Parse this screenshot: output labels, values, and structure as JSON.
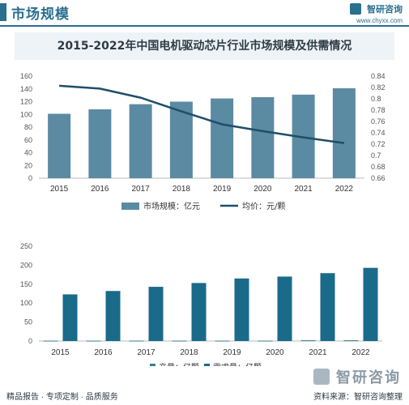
{
  "header": {
    "title": "市场规模",
    "brand_name": "智研咨询",
    "brand_url": "www.chyxx.com"
  },
  "colors": {
    "accent": "#2a6f8e",
    "bar_light": "#5b8aa3",
    "line": "#1f4e6b",
    "bar_dark": "#1a6a8a",
    "bar_tiny": "#3b7d95"
  },
  "chart_data": [
    {
      "type": "bar",
      "title": "2015-2022年中国电机驱动芯片行业市场规模及供需情况",
      "categories": [
        "2015",
        "2016",
        "2017",
        "2018",
        "2019",
        "2020",
        "2021",
        "2022"
      ],
      "series": [
        {
          "name": "市场规模：亿元",
          "type": "bar",
          "axis": "left",
          "values": [
            101,
            108,
            116,
            120,
            125,
            127,
            131,
            141
          ]
        },
        {
          "name": "均价：元/颗",
          "type": "line",
          "axis": "right",
          "values": [
            0.823,
            0.818,
            0.802,
            0.778,
            0.755,
            0.743,
            0.732,
            0.722
          ]
        }
      ],
      "ylim_left": [
        0,
        160
      ],
      "yticks_left": [
        "0",
        "20",
        "40",
        "60",
        "80",
        "100",
        "120",
        "140",
        "160"
      ],
      "ylim_right": [
        0.66,
        0.84
      ],
      "yticks_right": [
        "0.66",
        "0.68",
        "0.7",
        "0.72",
        "0.74",
        "0.76",
        "0.78",
        "0.8",
        "0.82",
        "0.84"
      ],
      "legend": "bottom"
    },
    {
      "type": "bar",
      "categories": [
        "2015",
        "2016",
        "2017",
        "2018",
        "2019",
        "2020",
        "2021",
        "2022"
      ],
      "series": [
        {
          "name": "产量：亿颗",
          "values": [
            1,
            1,
            1,
            1,
            1,
            1,
            2,
            2
          ]
        },
        {
          "name": "需求量：亿颗",
          "values": [
            123,
            132,
            143,
            153,
            165,
            170,
            179,
            193
          ]
        }
      ],
      "ylim": [
        0,
        250
      ],
      "yticks": [
        "0",
        "50",
        "100",
        "150",
        "200",
        "250"
      ],
      "legend": "bottom"
    }
  ],
  "footer": {
    "left": "精品报告 · 专项定制 · 品质服务",
    "source": "资料来源：智研咨询整理",
    "brand": "智研咨询"
  }
}
